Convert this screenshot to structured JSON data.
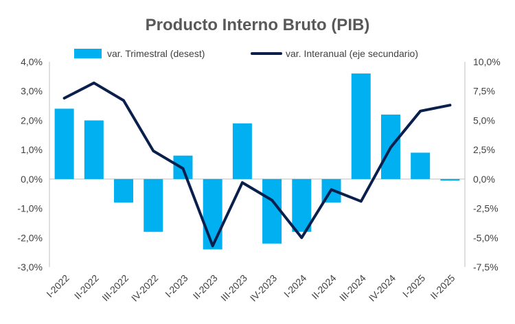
{
  "chart_data": {
    "type": "bar",
    "title": "Producto Interno Bruto (PIB)",
    "categories": [
      "I-2022",
      "II-2022",
      "III-2022",
      "IV-2022",
      "I-2023",
      "II-2023",
      "III-2023",
      "IV-2023",
      "I-2024",
      "II-2024",
      "III-2024",
      "IV-2024",
      "I-2025",
      "II-2025"
    ],
    "series": [
      {
        "name": "var. Trimestral (desest)",
        "type": "bar",
        "axis": "primary",
        "color": "#00B0F0",
        "values": [
          2.4,
          2.0,
          -0.8,
          -1.8,
          0.8,
          -2.4,
          1.9,
          -2.2,
          -1.8,
          -0.8,
          3.6,
          2.2,
          0.9,
          -0.05
        ]
      },
      {
        "name": "var. Interanual (eje secundario)",
        "type": "line",
        "axis": "secondary",
        "color": "#0B1F4D",
        "values": [
          6.9,
          8.2,
          6.7,
          2.4,
          0.9,
          -5.7,
          -0.3,
          -1.8,
          -5.0,
          -0.9,
          -1.9,
          2.7,
          5.8,
          6.3
        ]
      }
    ],
    "y_primary": {
      "min": -3,
      "max": 4,
      "step": 1,
      "tick_labels": [
        "-3,0%",
        "-2,0%",
        "-1,0%",
        "0,0%",
        "1,0%",
        "2,0%",
        "3,0%",
        "4,0%"
      ]
    },
    "y_secondary": {
      "min": -7.5,
      "max": 10,
      "step": 2.5,
      "tick_labels": [
        "-7,5%",
        "-5,0%",
        "-2,5%",
        "0,0%",
        "2,5%",
        "5,0%",
        "7,5%",
        "10,0%"
      ]
    },
    "legend": "top",
    "grid": false
  }
}
